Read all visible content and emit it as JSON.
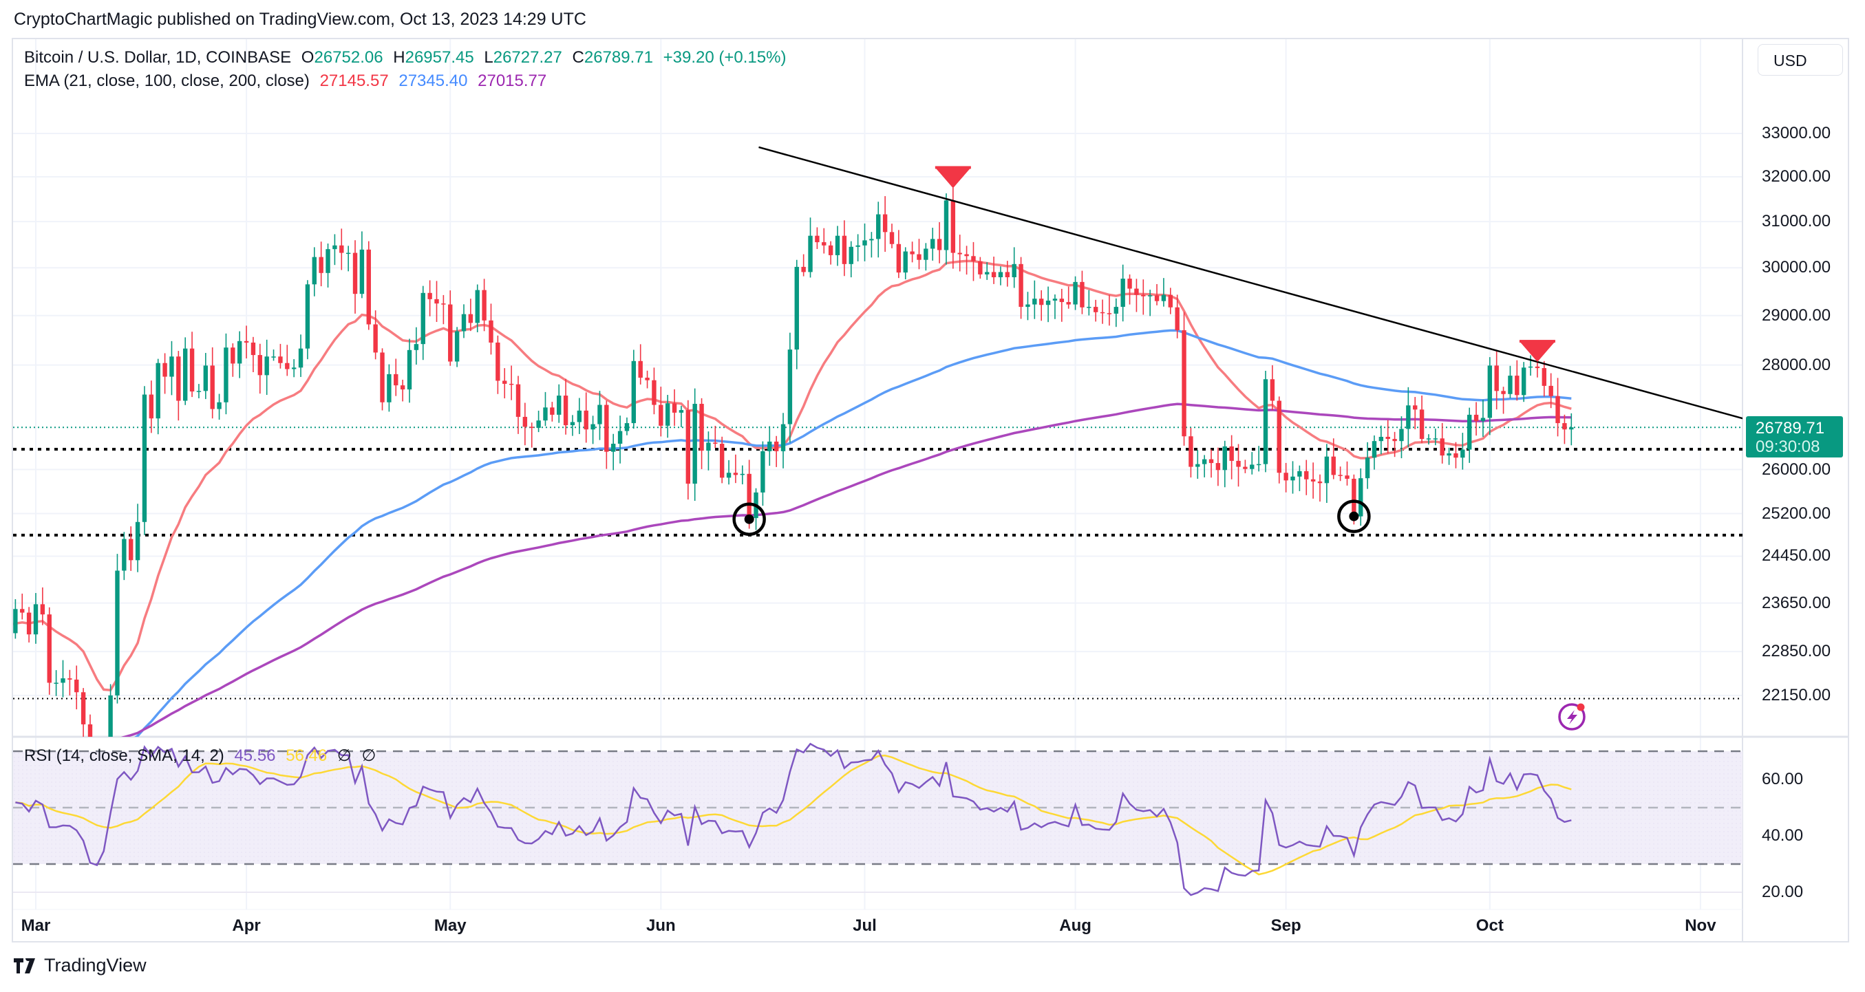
{
  "header": {
    "published": "CryptoChartMagic published on TradingView.com, Oct 13, 2023 14:29 UTC"
  },
  "legend": {
    "symbol": "Bitcoin / U.S. Dollar, 1D, COINBASE",
    "o_label": "O",
    "o": "26752.06",
    "h_label": "H",
    "h": "26957.45",
    "l_label": "L",
    "l": "26727.27",
    "c_label": "C",
    "c": "26789.71",
    "change": "+39.20 (+0.15%)",
    "ema_label": "EMA (21, close, 100, close, 200, close)",
    "ema21": "27145.57",
    "ema100": "27345.40",
    "ema200": "27015.77"
  },
  "rsi_legend": {
    "label": "RSI (14, close, SMA, 14, 2)",
    "rsi": "45.56",
    "sma": "56.46",
    "na1": "∅",
    "na2": "∅"
  },
  "currency_button": "USD",
  "last_price": {
    "price": "26789.71",
    "countdown": "09:30:08"
  },
  "footer": {
    "brand": "TradingView"
  },
  "colors": {
    "up": "#089981",
    "down": "#f23645",
    "ema21": "#f77c80",
    "ema100": "#5b9cf6",
    "ema200": "#ab47bc",
    "rsi": "#7e57c2",
    "rsi_sma": "#fdd835"
  },
  "chart_data": {
    "type": "candlestick",
    "title": "Bitcoin / U.S. Dollar, 1D, COINBASE",
    "scale": "log",
    "start_date": "2023-02-25",
    "closes": [
      23150,
      23550,
      23490,
      23130,
      23630,
      23460,
      22350,
      22350,
      22420,
      22400,
      22200,
      21700,
      20360,
      20190,
      20630,
      22150,
      24200,
      24750,
      24380,
      25050,
      27420,
      26960,
      28040,
      27770,
      28170,
      27300,
      28330,
      27480,
      27490,
      27990,
      27140,
      27270,
      28350,
      28030,
      28480,
      28450,
      28200,
      27800,
      28170,
      28170,
      28040,
      27920,
      27950,
      28330,
      29650,
      30230,
      29890,
      30400,
      30480,
      30320,
      30320,
      29450,
      30390,
      28820,
      28250,
      27270,
      27820,
      27600,
      27520,
      28300,
      28420,
      29470,
      29340,
      29250,
      29230,
      28070,
      28680,
      29030,
      28850,
      29530,
      28900,
      28450,
      27690,
      27630,
      27620,
      26990,
      26800,
      26780,
      26920,
      27170,
      27030,
      27400,
      26830,
      26890,
      27110,
      26750,
      26850,
      27220,
      26330,
      26480,
      26720,
      26870,
      28080,
      27750,
      27700,
      27220,
      26820,
      27250,
      27070,
      27120,
      25740,
      27240,
      26350,
      26500,
      26480,
      25850,
      25940,
      25900,
      25920,
      25120,
      25580,
      26340,
      26520,
      26340,
      26850,
      28310,
      30020,
      29910,
      30690,
      30550,
      30480,
      30270,
      30690,
      30080,
      30450,
      30480,
      30590,
      30620,
      31160,
      30770,
      30510,
      29900,
      30350,
      30290,
      30170,
      30410,
      30620,
      30380,
      31470,
      30320,
      30290,
      30250,
      30140,
      29860,
      29910,
      29800,
      29910,
      29800,
      30080,
      29180,
      29230,
      29350,
      29220,
      29310,
      29350,
      29280,
      29230,
      29700,
      29170,
      29180,
      29070,
      29050,
      29040,
      29180,
      29770,
      29560,
      29430,
      29400,
      29420,
      29300,
      29430,
      29170,
      28700,
      26620,
      26050,
      26100,
      26190,
      26120,
      25990,
      26430,
      26160,
      26050,
      26010,
      26090,
      26100,
      27720,
      27300,
      25940,
      25800,
      25870,
      25970,
      25820,
      25780,
      25750,
      26240,
      25900,
      25890,
      25830,
      25150,
      25840,
      26220,
      26530,
      26610,
      26570,
      26530,
      26760,
      27210,
      27130,
      26570,
      26580,
      26580,
      26260,
      26300,
      26220,
      26370,
      27030,
      26910,
      26970,
      27990,
      27490,
      27430,
      27790,
      27410,
      27950,
      27970,
      27940,
      27590,
      27390,
      26870,
      26750,
      26789.71
    ],
    "first_open": 23000,
    "ema_periods": [
      21,
      100,
      200
    ],
    "ema_seeds": [
      23300,
      20900,
      21300
    ],
    "rsi_period": 14,
    "rsi_seed_avg_gain": 260,
    "rsi_seed_avg_loss": 270,
    "price_ticks": [
      33000,
      32000,
      31000,
      30000,
      29000,
      28000,
      26000,
      25200,
      24450,
      23650,
      22850,
      22150
    ],
    "price_tick_labels": [
      "33000.00",
      "32000.00",
      "31000.00",
      "30000.00",
      "29000.00",
      "28000.00",
      "26000.00",
      "25200.00",
      "24450.00",
      "23650.00",
      "22850.00",
      "22150.00"
    ],
    "rsi_ticks": [
      60,
      40,
      20
    ],
    "rsi_tick_labels": [
      "60.00",
      "40.00",
      "20.00"
    ],
    "rsi_bands": [
      70,
      50,
      30
    ],
    "time_labels": [
      "Mar",
      "Apr",
      "May",
      "Jun",
      "Jul",
      "Aug",
      "Sep",
      "Oct",
      "Nov"
    ],
    "time_label_days_from_mar1": [
      0,
      31,
      61,
      92,
      122,
      153,
      184,
      214,
      245
    ],
    "drawings": {
      "trendline": [
        {
          "day": 106.4,
          "price": 32680
        },
        {
          "day": 251.2,
          "price": 26960
        }
      ],
      "horizontal_levels": [
        26377,
        24817,
        22100
      ],
      "sell_markers": [
        {
          "day": 135,
          "price": 31900
        },
        {
          "day": 221,
          "price": 28200
        }
      ],
      "circle_markers": [
        {
          "day": 105,
          "price": 25100
        },
        {
          "day": 194,
          "price": 25150
        }
      ]
    }
  }
}
